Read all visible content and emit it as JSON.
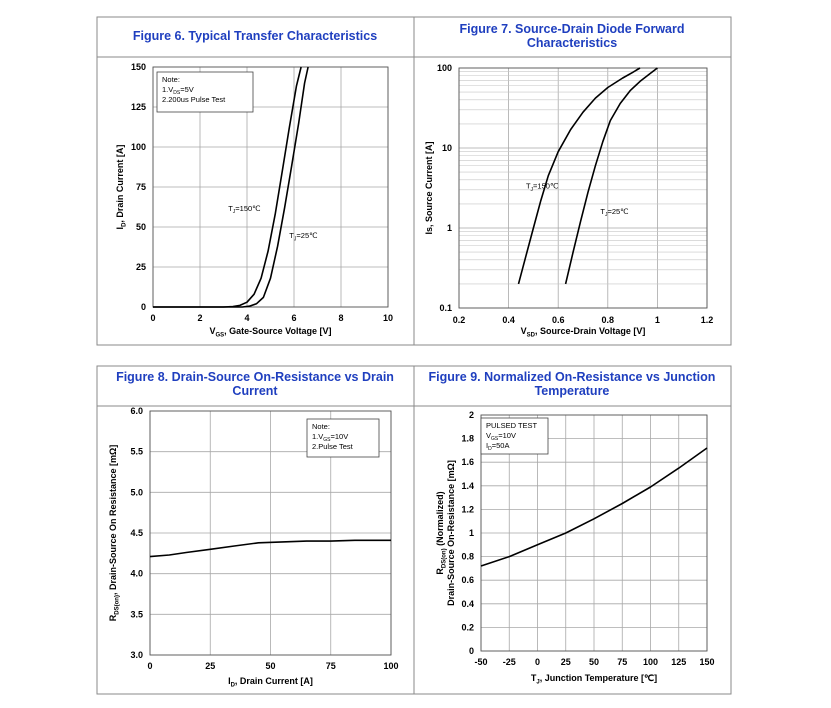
{
  "colors": {
    "title": "#1f3fbf",
    "frame": "#8a8a8a",
    "grid": "#a8a8a8",
    "curve": "#000000"
  },
  "chart_data": [
    {
      "id": "fig6",
      "type": "line",
      "title": "Figure 6. Typical Transfer Characteristics",
      "xlabel": "V_GS, Gate-Source Voltage [V]",
      "ylabel": "I_D, Drain Current [A]",
      "xlim": [
        0,
        10
      ],
      "ylim": [
        0,
        150
      ],
      "xticks": [
        "0",
        "2",
        "4",
        "6",
        "8",
        "10"
      ],
      "yticks": [
        "0",
        "25",
        "50",
        "75",
        "100",
        "125",
        "150"
      ],
      "grid": true,
      "note": [
        "Note:",
        "1.V_DS=5V",
        "2.200us Pulse Test"
      ],
      "series": [
        {
          "name": "T_J=150℃",
          "x": [
            0,
            3.0,
            3.4,
            3.7,
            4.0,
            4.3,
            4.6,
            4.9,
            5.2,
            5.5,
            5.8,
            6.1,
            6.3
          ],
          "y": [
            0,
            0,
            0.3,
            1,
            3,
            8,
            18,
            35,
            58,
            85,
            112,
            138,
            150
          ]
        },
        {
          "name": "T_J=25℃",
          "x": [
            0,
            3.8,
            4.1,
            4.4,
            4.7,
            5.0,
            5.3,
            5.6,
            5.9,
            6.2,
            6.45,
            6.6
          ],
          "y": [
            0,
            0,
            0.5,
            2,
            6,
            18,
            38,
            62,
            88,
            115,
            140,
            150
          ]
        }
      ],
      "annotations": [
        {
          "text": "T_J=150℃",
          "x": 3.2,
          "y": 60
        },
        {
          "text": "T_J=25℃",
          "x": 5.8,
          "y": 43
        }
      ]
    },
    {
      "id": "fig7",
      "type": "line",
      "title": [
        "Figure 7. Source-Drain Diode Forward",
        "Characteristics"
      ],
      "xlabel": "V_SD, Source-Drain Voltage [V]",
      "ylabel": "Is, Source Current [A]",
      "xlim": [
        0.2,
        1.2
      ],
      "ylim": [
        0.1,
        100
      ],
      "yscale": "log",
      "xticks": [
        "0.2",
        "0.4",
        "0.6",
        "0.8",
        "1",
        "1.2"
      ],
      "yticks": [
        "0.1",
        "1",
        "10",
        "100"
      ],
      "grid": true,
      "series": [
        {
          "name": "T_J=150℃",
          "x": [
            0.44,
            0.47,
            0.5,
            0.53,
            0.56,
            0.6,
            0.65,
            0.7,
            0.75,
            0.8,
            0.86,
            0.9,
            0.93
          ],
          "y": [
            0.2,
            0.45,
            1.0,
            2.2,
            4.5,
            9,
            17,
            28,
            42,
            57,
            75,
            88,
            100
          ]
        },
        {
          "name": "T_J=25℃",
          "x": [
            0.63,
            0.66,
            0.69,
            0.72,
            0.75,
            0.78,
            0.81,
            0.85,
            0.89,
            0.93,
            0.97,
            1.0
          ],
          "y": [
            0.2,
            0.5,
            1.2,
            2.8,
            6,
            12,
            22,
            36,
            52,
            68,
            85,
            100
          ]
        }
      ],
      "annotations": [
        {
          "text": "T_J=150℃",
          "x": 0.47,
          "y": 3.1
        },
        {
          "text": "T_J=25℃",
          "x": 0.77,
          "y": 1.5
        }
      ]
    },
    {
      "id": "fig8",
      "type": "line",
      "title": [
        "Figure 8. Drain-Source On-Resistance vs Drain",
        "Current"
      ],
      "xlabel": "I_D, Drain Current [A]",
      "ylabel": "R_DS(on), Drain-Source On Resistance [mΩ]",
      "xlim": [
        0,
        100
      ],
      "ylim": [
        3.0,
        6.0
      ],
      "xticks": [
        "0",
        "25",
        "50",
        "75",
        "100"
      ],
      "yticks": [
        "3.0",
        "3.5",
        "4.0",
        "4.5",
        "5.0",
        "5.5",
        "6.0"
      ],
      "grid": true,
      "note": [
        "Note:",
        "1.V_GS=10V",
        "2.Pulse Test"
      ],
      "series": [
        {
          "name": "R_DS(on)",
          "x": [
            0,
            8,
            15,
            25,
            35,
            45,
            55,
            65,
            75,
            85,
            100
          ],
          "y": [
            4.21,
            4.23,
            4.26,
            4.3,
            4.34,
            4.38,
            4.39,
            4.4,
            4.4,
            4.41,
            4.41
          ]
        }
      ]
    },
    {
      "id": "fig9",
      "type": "line",
      "title": [
        "Figure 9. Normalized On-Resistance vs Junction",
        "Temperature"
      ],
      "xlabel": "T_J, Junction Temperature [℃]",
      "ylabel": [
        "R_DS(on) (Normalized)",
        "Drain-Source On-Resistance [mΩ]"
      ],
      "xlim": [
        -50,
        150
      ],
      "ylim": [
        0,
        2
      ],
      "xticks": [
        "-50",
        "-25",
        "0",
        "25",
        "50",
        "75",
        "100",
        "125",
        "150"
      ],
      "yticks": [
        "0",
        "0.2",
        "0.4",
        "0.6",
        "0.8",
        "1",
        "1.2",
        "1.4",
        "1.6",
        "1.8",
        "2"
      ],
      "grid": true,
      "note": [
        "PULSED TEST",
        "V_GS=10V",
        "I_D=50A"
      ],
      "series": [
        {
          "name": "Normalized R_DS(on)",
          "x": [
            -50,
            -25,
            0,
            25,
            50,
            75,
            100,
            125,
            150
          ],
          "y": [
            0.72,
            0.8,
            0.9,
            1.0,
            1.12,
            1.25,
            1.39,
            1.55,
            1.72
          ]
        }
      ]
    }
  ]
}
